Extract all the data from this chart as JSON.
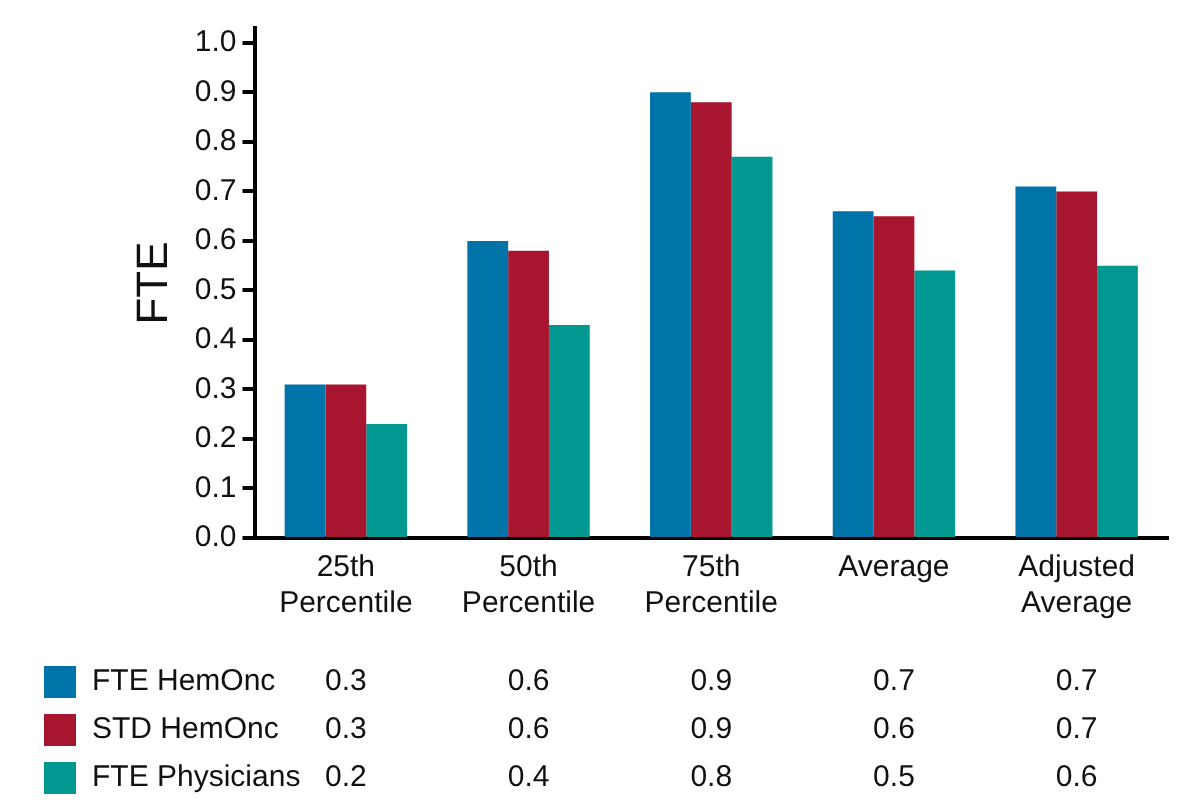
{
  "chart_data": {
    "type": "bar",
    "ylabel": "FTE",
    "categories": [
      "25th\nPercentile",
      "50th\nPercentile",
      "75th\nPercentile",
      "Average",
      "Adjusted\nAverage"
    ],
    "series": [
      {
        "name": "FTE HemOnc",
        "color": "#0073a8",
        "values": [
          0.31,
          0.6,
          0.9,
          0.66,
          0.71
        ],
        "value_labels": [
          "0.3",
          "0.6",
          "0.9",
          "0.7",
          "0.7"
        ]
      },
      {
        "name": "STD HemOnc",
        "color": "#a8152e",
        "values": [
          0.31,
          0.58,
          0.88,
          0.65,
          0.7
        ],
        "value_labels": [
          "0.3",
          "0.6",
          "0.9",
          "0.6",
          "0.7"
        ]
      },
      {
        "name": "FTE Physicians",
        "color": "#009890",
        "values": [
          0.23,
          0.43,
          0.77,
          0.54,
          0.55
        ],
        "value_labels": [
          "0.2",
          "0.4",
          "0.8",
          "0.5",
          "0.6"
        ]
      }
    ],
    "ylim": [
      0,
      1.03
    ],
    "yticks": [
      {
        "value": 0,
        "label": "0.0"
      },
      {
        "value": 0.1,
        "label": "0.1"
      },
      {
        "value": 0.2,
        "label": "0.2"
      },
      {
        "value": 0.3,
        "label": "0.3"
      },
      {
        "value": 0.4,
        "label": "0.4"
      },
      {
        "value": 0.5,
        "label": "0.5"
      },
      {
        "value": 0.6,
        "label": "0.6"
      },
      {
        "value": 0.7,
        "label": "0.7"
      },
      {
        "value": 0.8,
        "label": "0.8"
      },
      {
        "value": 0.9,
        "label": "0.9"
      },
      {
        "value": 1,
        "label": "1.0"
      }
    ],
    "grid": false,
    "legend": "bottom"
  }
}
